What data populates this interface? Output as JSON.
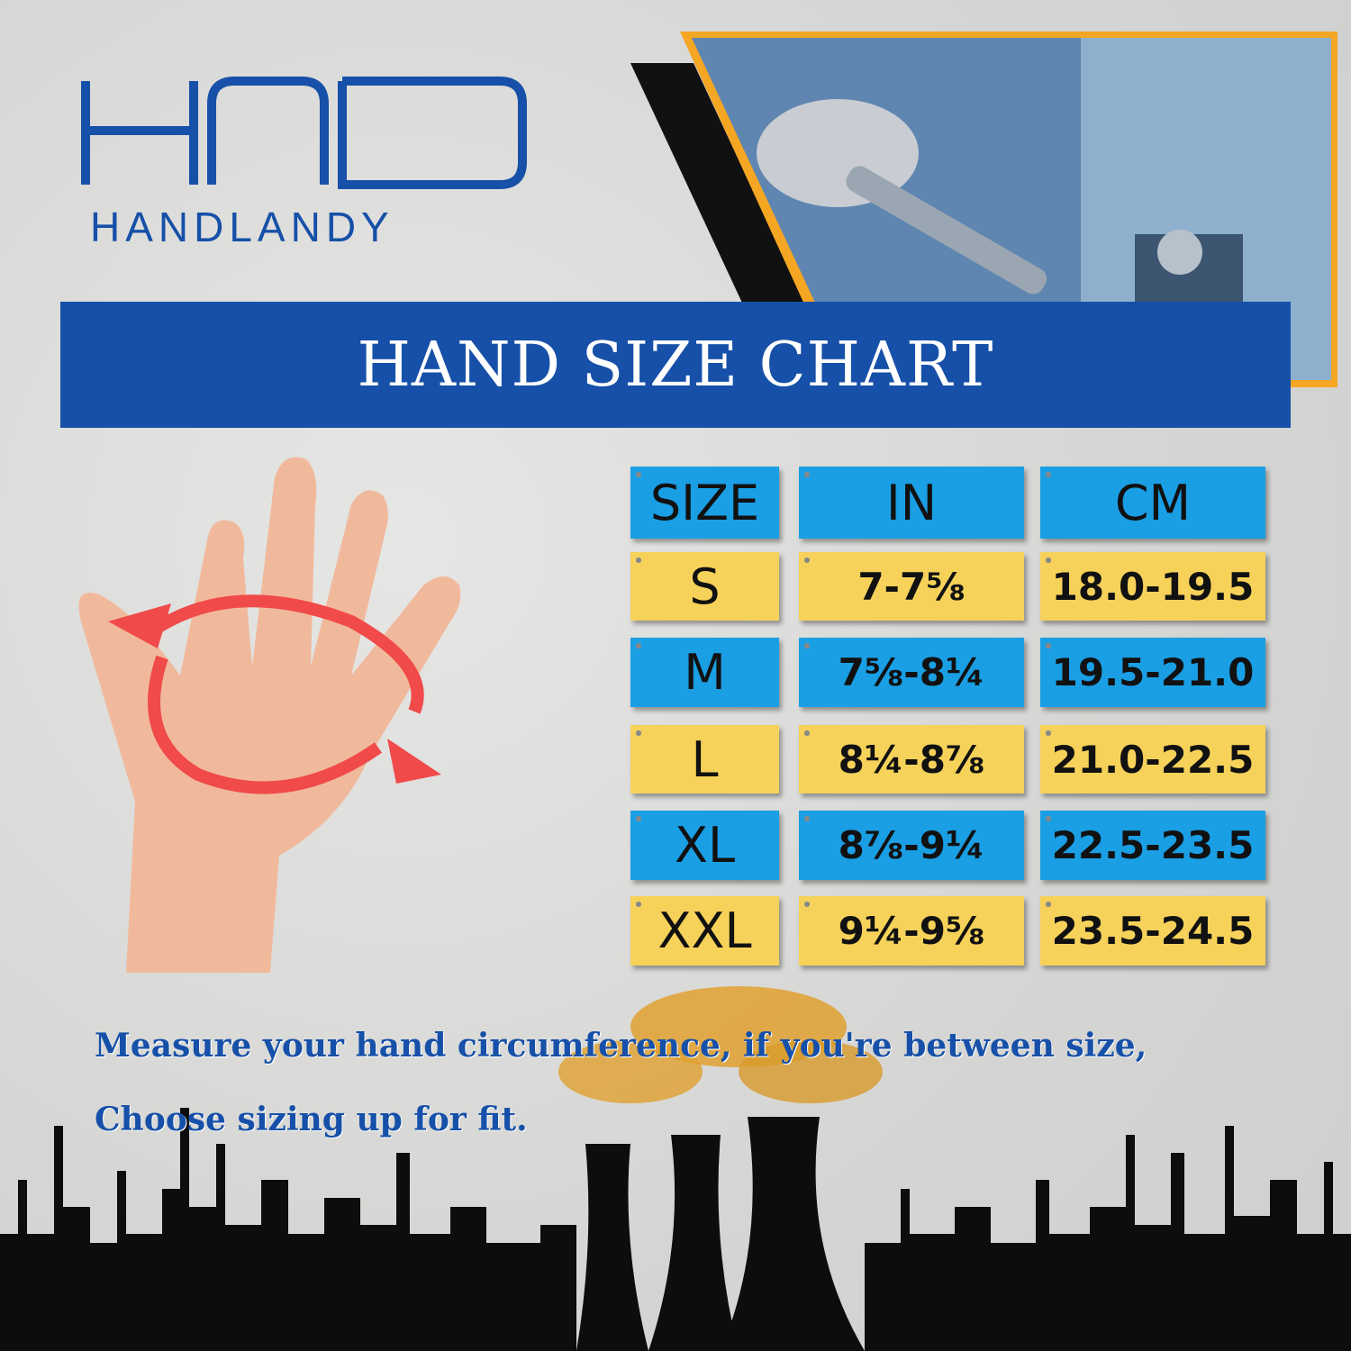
{
  "brand": {
    "logo_text": "HANDLANDY",
    "primary_color": "#1650a8",
    "accent_color": "#f5a623"
  },
  "banner": {
    "title": "HAND SIZE CHART"
  },
  "size_table": {
    "headers": [
      "SIZE",
      "IN",
      "CM"
    ],
    "rows": [
      {
        "size": "S",
        "in": "7-7⅝",
        "cm": "18.0-19.5"
      },
      {
        "size": "M",
        "in": "7⅝-8¼",
        "cm": "19.5-21.0"
      },
      {
        "size": "L",
        "in": "8¼-8⅞",
        "cm": "21.0-22.5"
      },
      {
        "size": "XL",
        "in": "8⅞-9¼",
        "cm": "22.5-23.5"
      },
      {
        "size": "XXL",
        "in": "9¼-9⅝",
        "cm": "23.5-24.5"
      }
    ],
    "colors": {
      "yellow": "#f6d25a",
      "blue": "#1a9ee4"
    }
  },
  "instructions": {
    "line1": "Measure your hand circumference, if you're between size,",
    "line2": "Choose sizing up for fit."
  }
}
